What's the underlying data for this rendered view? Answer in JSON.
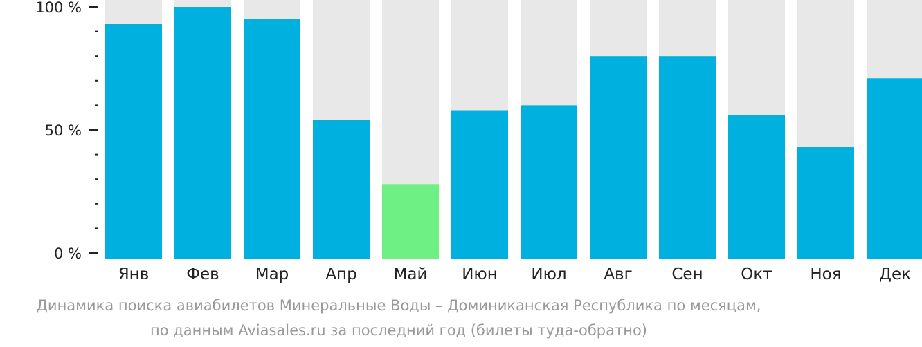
{
  "chart_data": {
    "type": "bar",
    "categories": [
      "Янв",
      "Фев",
      "Мар",
      "Апр",
      "Май",
      "Июн",
      "Июл",
      "Авг",
      "Сен",
      "Окт",
      "Ноя",
      "Дек"
    ],
    "values": [
      93,
      100,
      95,
      54,
      28,
      58,
      60,
      80,
      80,
      56,
      43,
      71
    ],
    "highlight_index": 4,
    "ylim": [
      0,
      100
    ],
    "yticks": [
      {
        "value": 0,
        "label": "0 %"
      },
      {
        "value": 50,
        "label": "50 %"
      },
      {
        "value": 100,
        "label": "100 %"
      }
    ],
    "minor_tick_step": 10,
    "colors": {
      "bar": "#00b0de",
      "highlight": "#6ef085",
      "background_bar": "#e8e8e8",
      "axis": "#222222"
    }
  },
  "caption": {
    "line1": "Динамика поиска авиабилетов Минеральные Воды – Доминиканская Республика по месяцам,",
    "line2": "по данным Aviasales.ru за последний год (билеты туда-обратно)"
  }
}
